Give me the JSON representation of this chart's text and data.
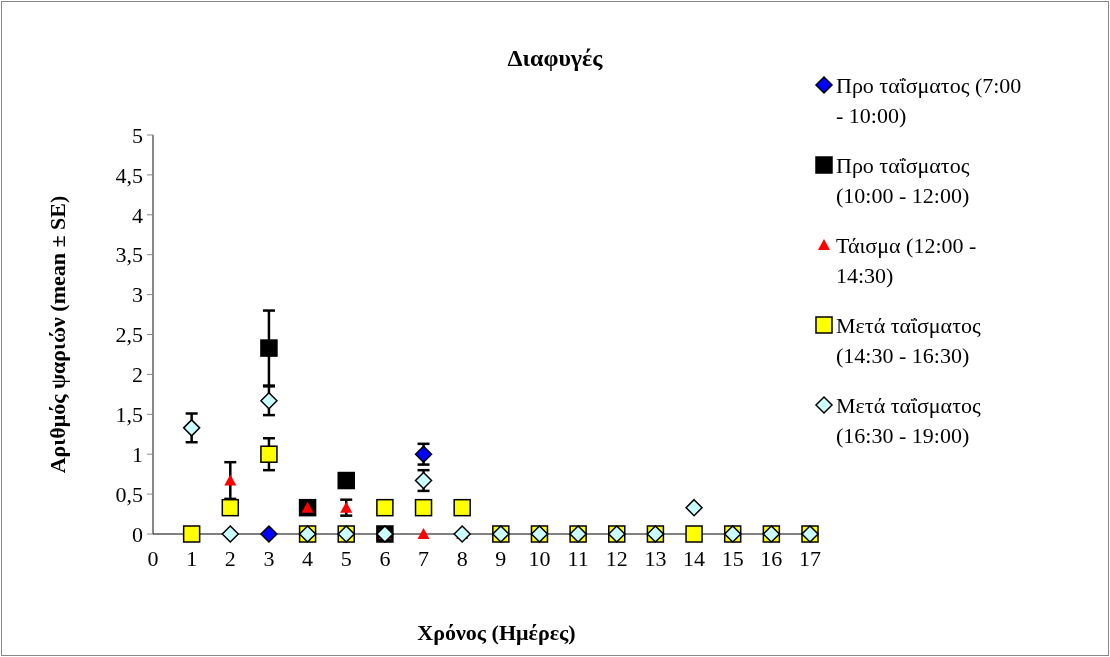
{
  "chart_data": {
    "type": "scatter",
    "title": "Διαφυγές",
    "xlabel": "Χρόνος (Ημέρες)",
    "ylabel": "Αριθμός ψαριών (mean ± SE)",
    "x": [
      1,
      2,
      3,
      4,
      5,
      6,
      7,
      8,
      9,
      10,
      11,
      12,
      13,
      14,
      15,
      16,
      17
    ],
    "xlim": [
      0,
      17
    ],
    "xticks": [
      0,
      1,
      2,
      3,
      4,
      5,
      6,
      7,
      8,
      9,
      10,
      11,
      12,
      13,
      14,
      15,
      16,
      17
    ],
    "ylim": [
      0,
      5
    ],
    "yticks": [
      0,
      {
        "value": 0.5,
        "label": "0,5"
      },
      1,
      {
        "value": 1.5,
        "label": "1,5"
      },
      2,
      {
        "value": 2.5,
        "label": "2,5"
      },
      3,
      {
        "value": 3.5,
        "label": "3,5"
      },
      4,
      {
        "value": 4.5,
        "label": "4,5"
      },
      5
    ],
    "grid": false,
    "legend": "right",
    "series": [
      {
        "name": "Προ ταΐσματος (7:00 - 10:00)",
        "color": "#0000ff",
        "marker": "diamond",
        "values": [
          null,
          null,
          0,
          null,
          null,
          null,
          1,
          null,
          null,
          null,
          null,
          null,
          null,
          null,
          null,
          null,
          null
        ],
        "errors": [
          null,
          null,
          null,
          null,
          null,
          null,
          0.13,
          null,
          null,
          null,
          null,
          null,
          null,
          null,
          null,
          null,
          null
        ]
      },
      {
        "name": "Προ ταΐσματος (10:00 - 12:00)",
        "color": "#000000",
        "marker": "square",
        "values": [
          null,
          null,
          2.33,
          0.33,
          0.67,
          0,
          null,
          null,
          null,
          null,
          null,
          null,
          null,
          null,
          null,
          null,
          null
        ],
        "errors": [
          null,
          null,
          0.47,
          null,
          null,
          null,
          null,
          null,
          null,
          null,
          null,
          null,
          null,
          null,
          null,
          null,
          null
        ]
      },
      {
        "name": "Τάισμα (12:00 - 14:30)",
        "color": "#ff0000",
        "marker": "triangle",
        "values": [
          null,
          0.67,
          null,
          0.33,
          0.33,
          0,
          0,
          0,
          null,
          null,
          null,
          null,
          null,
          null,
          null,
          null,
          null
        ],
        "errors": [
          null,
          0.23,
          null,
          null,
          0.1,
          null,
          null,
          null,
          null,
          null,
          null,
          null,
          null,
          null,
          null,
          null,
          null
        ]
      },
      {
        "name": "Μετά ταΐσματος (14:30 - 16:30)",
        "color": "#ffff00",
        "marker": "square",
        "values": [
          0,
          0.33,
          1,
          0,
          0,
          0.33,
          0.33,
          0.33,
          0,
          0,
          0,
          0,
          0,
          0,
          0,
          0,
          0
        ],
        "errors": [
          null,
          null,
          0.2,
          null,
          null,
          null,
          null,
          null,
          null,
          null,
          null,
          null,
          null,
          null,
          null,
          null,
          null
        ]
      },
      {
        "name": "Μετά ταΐσματος (16:30 - 19:00)",
        "color": "#ccffff",
        "marker": "diamond",
        "values": [
          1.33,
          0,
          1.67,
          0,
          0,
          0,
          0.67,
          0,
          0,
          0,
          0,
          0,
          0,
          0.33,
          0,
          0,
          0
        ],
        "errors": [
          0.18,
          null,
          0.18,
          null,
          null,
          null,
          0.13,
          null,
          null,
          null,
          null,
          null,
          null,
          null,
          null,
          null,
          null
        ]
      }
    ]
  }
}
